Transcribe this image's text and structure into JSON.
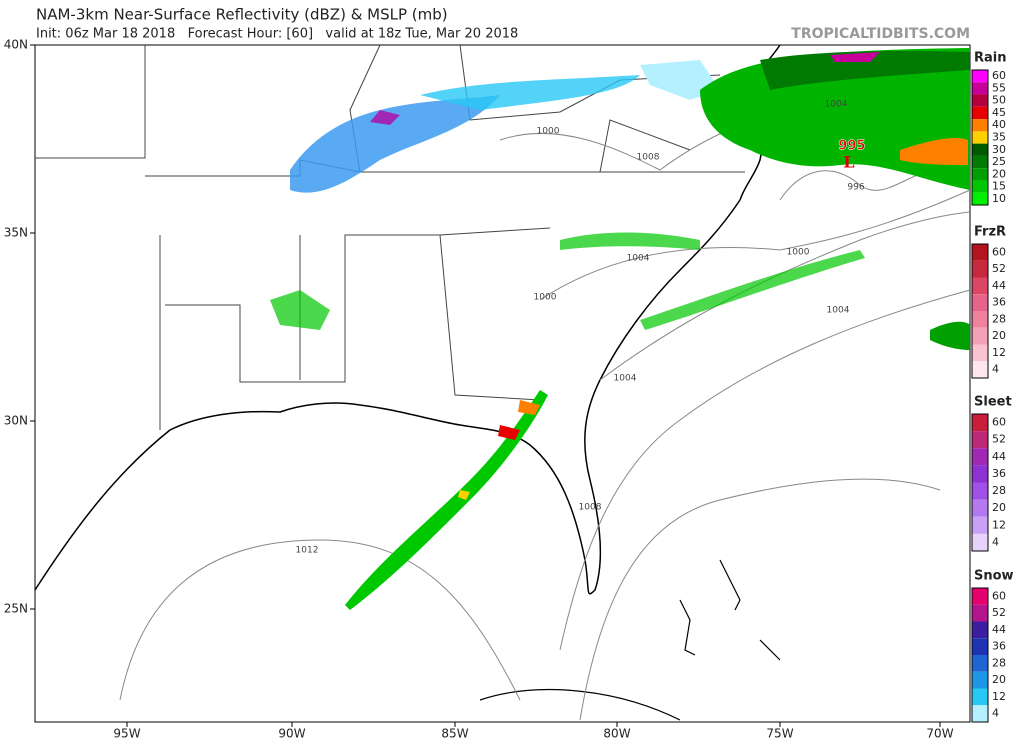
{
  "header": {
    "title": "NAM-3km Near-Surface Reflectivity (dBZ) & MSLP (mb)",
    "subtitle": "Init: 06z Mar 18 2018   Forecast Hour: [60]   valid at 18z Tue, Mar 20 2018",
    "site": "TROPICALTIDBITS.COM"
  },
  "axes": {
    "lat_labels": [
      "40N",
      "35N",
      "30N",
      "25N"
    ],
    "lon_labels": [
      "95W",
      "90W",
      "85W",
      "80W",
      "75W",
      "70W"
    ]
  },
  "legends": [
    {
      "title": "Rain",
      "labels": [
        60,
        55,
        50,
        45,
        40,
        35,
        30,
        25,
        20,
        15,
        10
      ],
      "colors": [
        "#ff00ff",
        "#c8009a",
        "#b4003c",
        "#e80000",
        "#ff8000",
        "#ffd000",
        "#005a00",
        "#007a00",
        "#00a000",
        "#00c800",
        "#00f000"
      ]
    },
    {
      "title": "FrzR",
      "labels": [
        60,
        52,
        44,
        36,
        28,
        20,
        12,
        4
      ],
      "colors": [
        "#b4141e",
        "#c8283c",
        "#dc4664",
        "#e6648a",
        "#f082a0",
        "#f5a0b9",
        "#fac3d2",
        "#ffe6ee"
      ]
    },
    {
      "title": "Sleet",
      "labels": [
        60,
        52,
        44,
        36,
        28,
        20,
        12,
        4
      ],
      "colors": [
        "#c81e3c",
        "#be2878",
        "#a028b4",
        "#8c32d2",
        "#a050e6",
        "#b478f0",
        "#c8a0f5",
        "#e6d2fa"
      ]
    },
    {
      "title": "Snow",
      "labels": [
        60,
        52,
        44,
        36,
        28,
        20,
        12,
        4
      ],
      "colors": [
        "#e6006e",
        "#b4148c",
        "#3c1ea0",
        "#1e32b4",
        "#1e64d2",
        "#1e96e6",
        "#28c8f5",
        "#b4f0ff"
      ]
    }
  ],
  "isobars": [
    "1000",
    "1008",
    "1004",
    "996",
    "1004",
    "1000",
    "1000",
    "1004",
    "1004",
    "1008",
    "1012"
  ],
  "low": {
    "symbol": "L",
    "pressure": "995"
  }
}
